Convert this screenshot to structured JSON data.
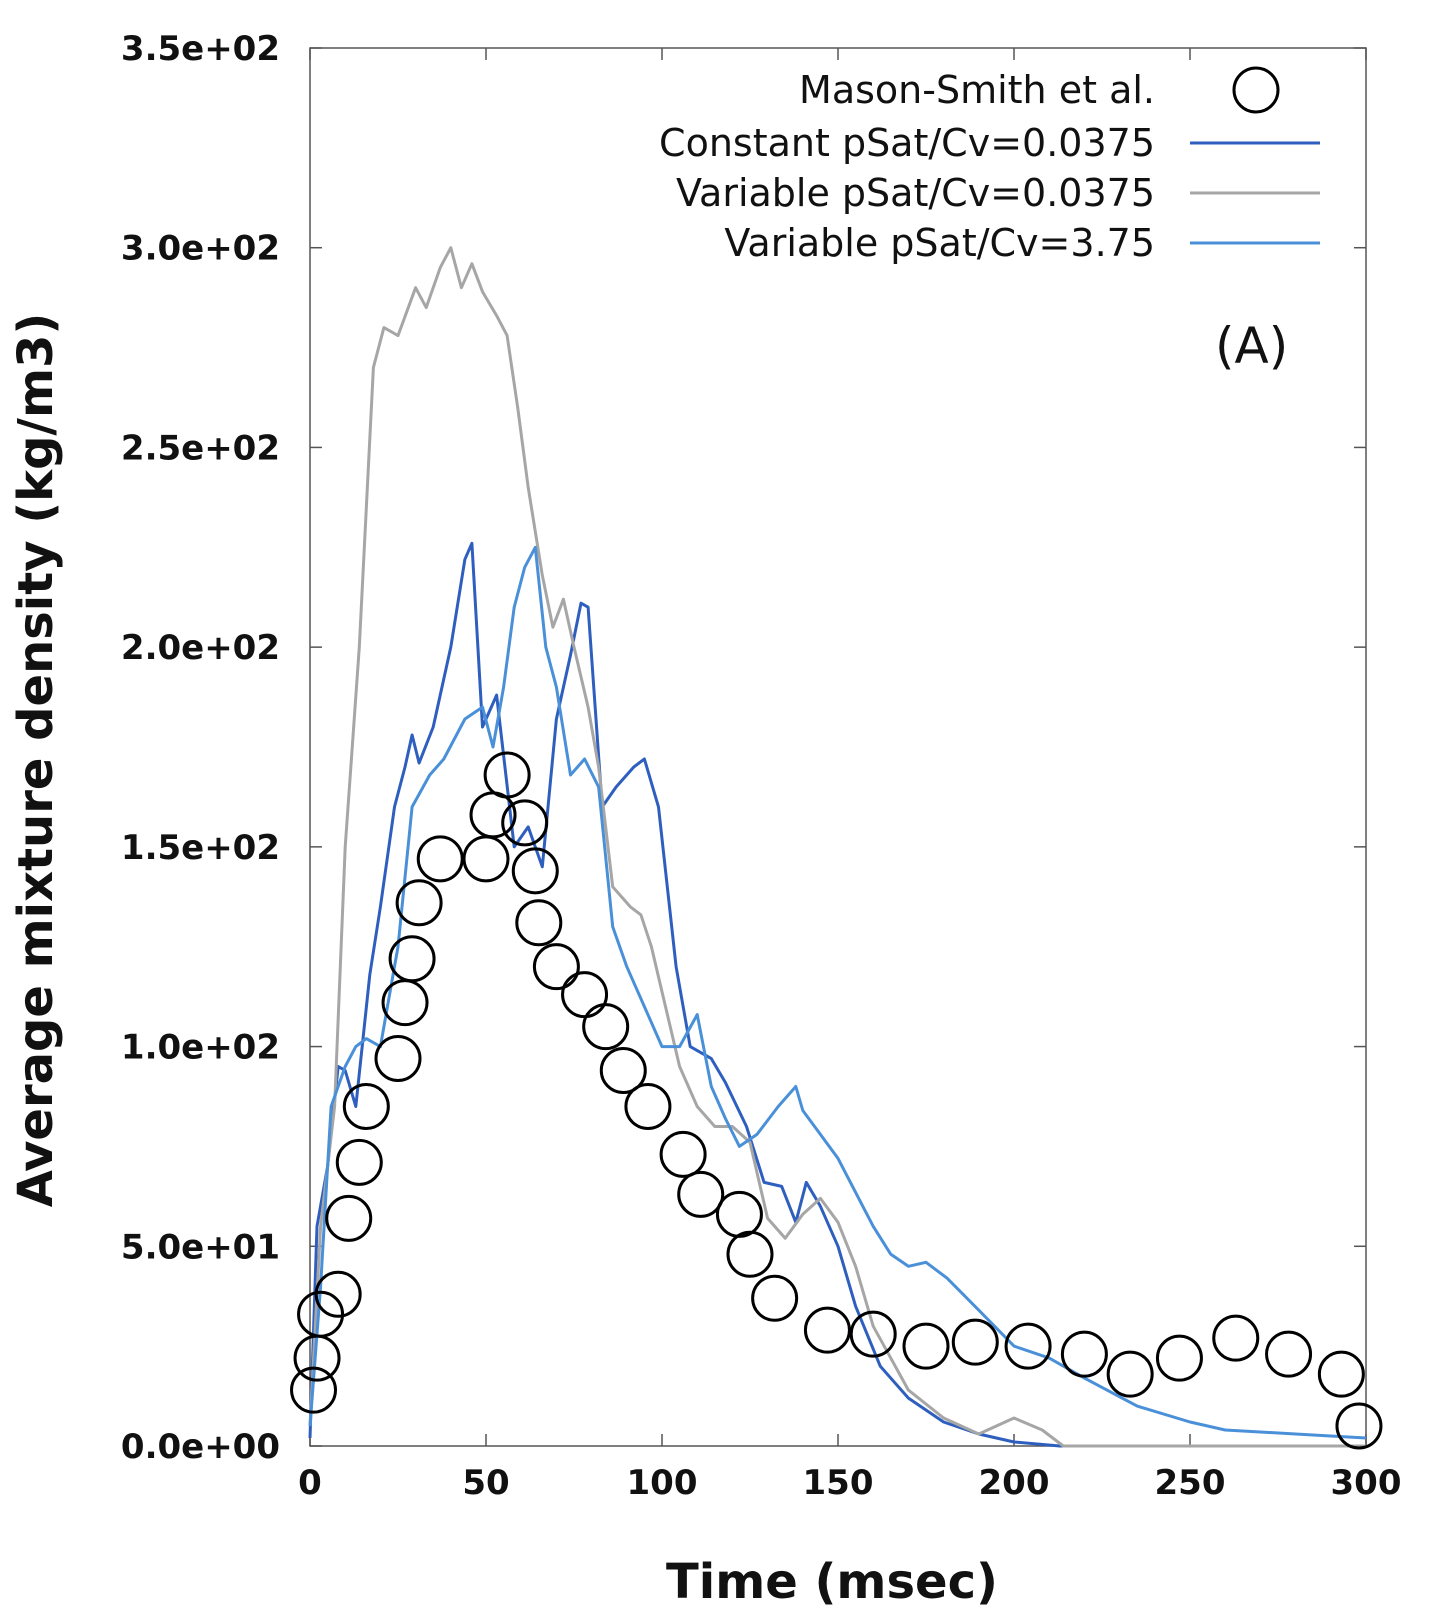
{
  "chart_data": {
    "type": "line",
    "title": "",
    "xlabel": "Time (msec)",
    "ylabel": "Average mixture density (kg/m3)",
    "xlim": [
      0,
      300
    ],
    "ylim": [
      0,
      350
    ],
    "xticks": [
      0,
      50,
      100,
      150,
      200,
      250,
      300
    ],
    "yticks": [
      0,
      50,
      100,
      150,
      200,
      250,
      300,
      350
    ],
    "ytick_labels": [
      "0.0e+00",
      "5.0e+01",
      "1.0e+02",
      "1.5e+02",
      "2.0e+02",
      "2.5e+02",
      "3.0e+02",
      "3.5e+02"
    ],
    "grid": false,
    "legend_position": "top-right",
    "panel_label": "(A)",
    "series": [
      {
        "name": "Mason-Smith et al.",
        "kind": "markers",
        "marker": "open-circle",
        "color": "#000000",
        "x": [
          1,
          2,
          3,
          8,
          11,
          14,
          16,
          25,
          27,
          29,
          31,
          37,
          50,
          52,
          56,
          61,
          64,
          65,
          70,
          78,
          84,
          89,
          96,
          106,
          111,
          122,
          125,
          132,
          147,
          160,
          175,
          189,
          204,
          220,
          233,
          247,
          263,
          278,
          293,
          298
        ],
        "y": [
          14,
          22,
          33,
          38,
          57,
          71,
          85,
          97,
          111,
          122,
          136,
          147,
          147,
          158,
          168,
          156,
          144,
          131,
          120,
          113,
          105,
          94,
          85,
          73,
          63,
          58,
          48,
          37,
          29,
          28,
          25,
          26,
          25,
          23,
          18,
          22,
          27,
          23,
          18,
          5
        ]
      },
      {
        "name": "Constant pSat/Cv=0.0375",
        "kind": "line",
        "color": "#2e5fbf",
        "x": [
          0,
          2,
          5,
          8,
          10,
          13,
          17,
          20,
          24,
          27,
          29,
          31,
          35,
          40,
          44,
          46,
          49,
          53,
          58,
          62,
          66,
          70,
          74,
          77,
          79,
          83,
          87,
          92,
          95,
          99,
          104,
          108,
          114,
          118,
          124,
          129,
          134,
          138,
          141,
          145,
          150,
          155,
          162,
          170,
          180,
          190,
          200,
          213,
          220,
          240,
          300
        ],
        "y": [
          2,
          55,
          70,
          95,
          94,
          85,
          118,
          135,
          160,
          170,
          178,
          171,
          180,
          200,
          222,
          226,
          180,
          188,
          150,
          155,
          145,
          182,
          198,
          211,
          210,
          160,
          165,
          170,
          172,
          160,
          120,
          100,
          97,
          91,
          80,
          66,
          65,
          56,
          66,
          60,
          50,
          35,
          20,
          12,
          6,
          3,
          1,
          0,
          0,
          0,
          0
        ]
      },
      {
        "name": "Variable pSat/Cv=0.0375",
        "kind": "line",
        "color": "#a6a6a6",
        "x": [
          0,
          3,
          7,
          10,
          14,
          18,
          21,
          25,
          30,
          33,
          37,
          40,
          43,
          46,
          49,
          53,
          56,
          59,
          62,
          66,
          69,
          72,
          75,
          79,
          82,
          86,
          91,
          94,
          97,
          101,
          105,
          110,
          115,
          120,
          125,
          130,
          135,
          140,
          145,
          150,
          155,
          160,
          170,
          180,
          190,
          200,
          208,
          214,
          300
        ],
        "y": [
          5,
          55,
          85,
          150,
          200,
          270,
          280,
          278,
          290,
          285,
          295,
          300,
          290,
          296,
          289,
          283,
          278,
          260,
          240,
          218,
          205,
          212,
          200,
          185,
          170,
          140,
          135,
          133,
          125,
          110,
          95,
          85,
          80,
          80,
          76,
          57,
          52,
          58,
          62,
          56,
          45,
          30,
          14,
          7,
          3,
          7,
          4,
          0,
          0
        ]
      },
      {
        "name": "Variable pSat/Cv=3.75",
        "kind": "line",
        "color": "#4a90d9",
        "x": [
          0,
          3,
          6,
          10,
          13,
          16,
          20,
          25,
          29,
          34,
          38,
          44,
          49,
          52,
          55,
          58,
          61,
          64,
          67,
          70,
          74,
          78,
          82,
          86,
          90,
          95,
          100,
          105,
          110,
          114,
          118,
          122,
          127,
          133,
          138,
          140,
          145,
          150,
          160,
          165,
          170,
          175,
          181,
          190,
          200,
          210,
          220,
          235,
          250,
          260,
          280,
          300
        ],
        "y": [
          5,
          40,
          85,
          95,
          100,
          102,
          100,
          125,
          160,
          168,
          172,
          182,
          185,
          175,
          190,
          210,
          220,
          225,
          200,
          190,
          168,
          172,
          165,
          130,
          120,
          110,
          100,
          100,
          108,
          90,
          82,
          75,
          78,
          85,
          90,
          84,
          78,
          72,
          55,
          48,
          45,
          46,
          42,
          34,
          25,
          22,
          17,
          10,
          6,
          4,
          3,
          2
        ]
      }
    ]
  }
}
